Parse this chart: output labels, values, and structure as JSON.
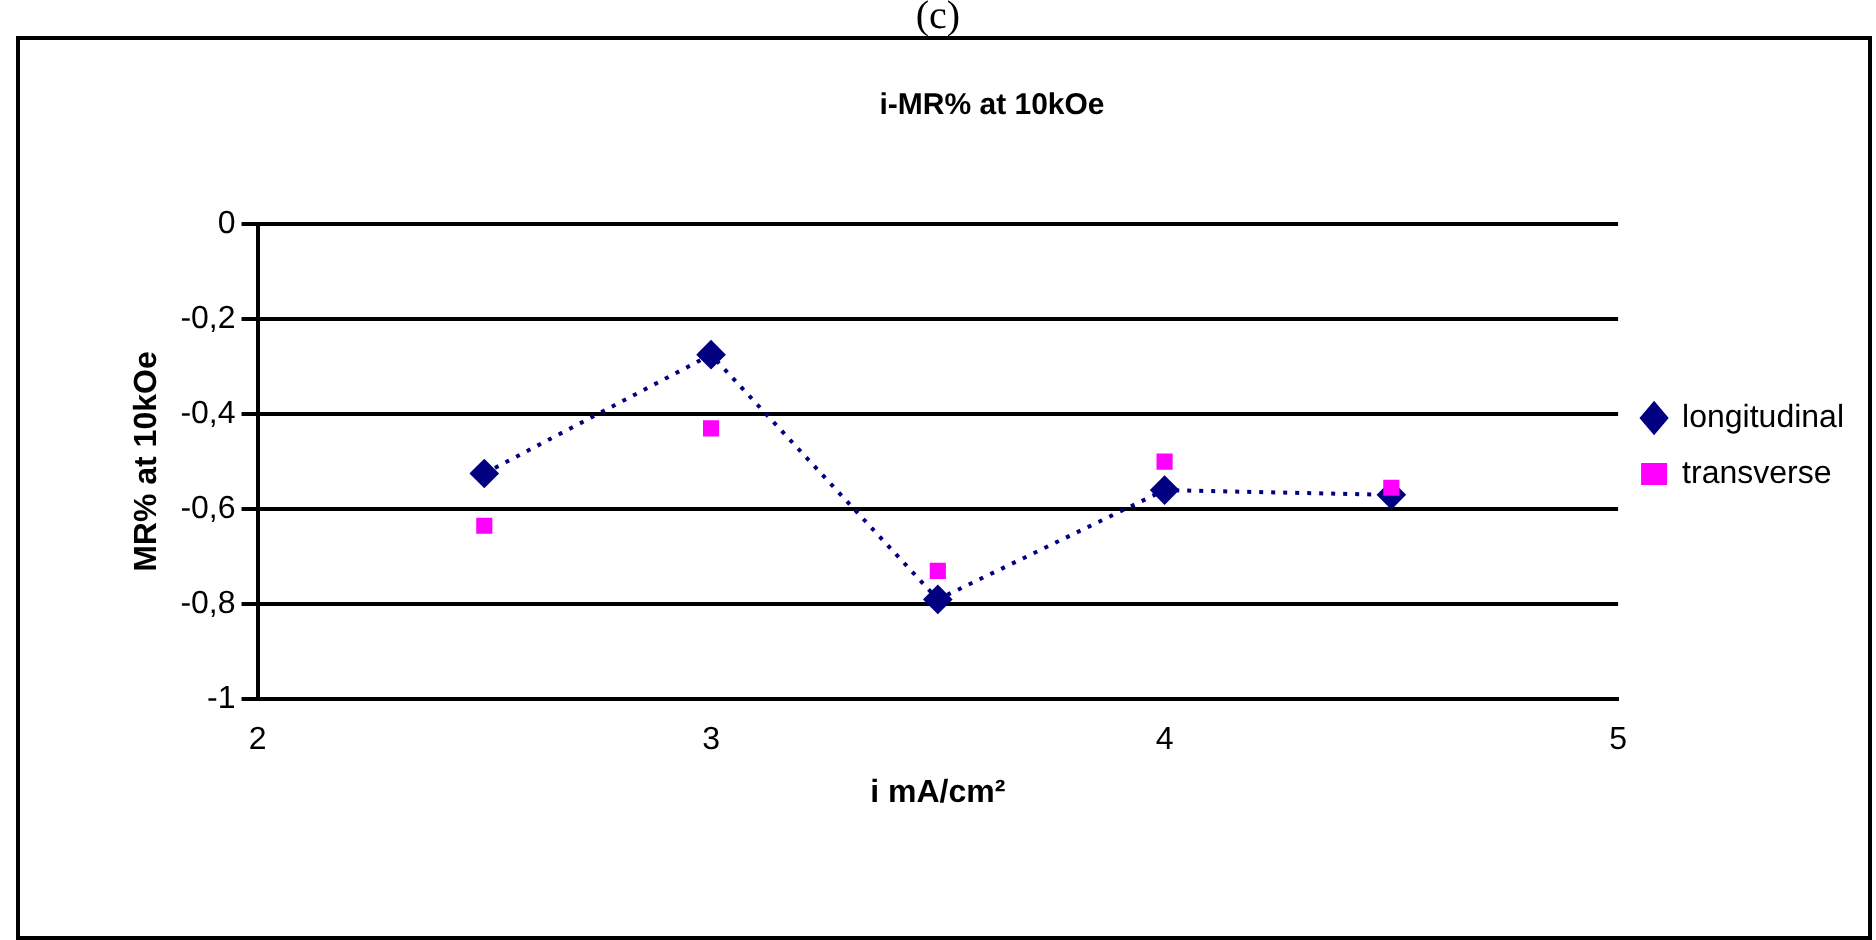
{
  "chart_data": {
    "type": "line",
    "title": "i-MR% at 10kOe",
    "xlabel": "i mA/cm²",
    "ylabel": "MR% at 10kOe",
    "annotations": [
      "(c)"
    ],
    "x": [
      2.5,
      3,
      3.5,
      4,
      4.5
    ],
    "series": [
      {
        "name": "longitudinal",
        "type": "line",
        "color": "#000080",
        "marker": "diamond",
        "line_style": "dotted",
        "values": [
          -0.525,
          -0.275,
          -0.79,
          -0.56,
          -0.57
        ]
      },
      {
        "name": "transverse",
        "type": "scatter",
        "color": "#ff00ff",
        "marker": "square",
        "values": [
          -0.635,
          -0.43,
          -0.73,
          -0.5,
          -0.555
        ]
      }
    ],
    "xlim": [
      2,
      5
    ],
    "xticks": [
      2,
      3,
      4,
      5
    ],
    "ylim": [
      -1,
      0
    ],
    "yticks": [
      {
        "value": -1,
        "label": "-1"
      },
      {
        "value": -0.8,
        "label": "-0,8"
      },
      {
        "value": -0.6,
        "label": "-0,6"
      },
      {
        "value": -0.4,
        "label": "-0,4"
      },
      {
        "value": -0.2,
        "label": "-0,2"
      },
      0
    ],
    "grid": "y",
    "legend": "right"
  }
}
